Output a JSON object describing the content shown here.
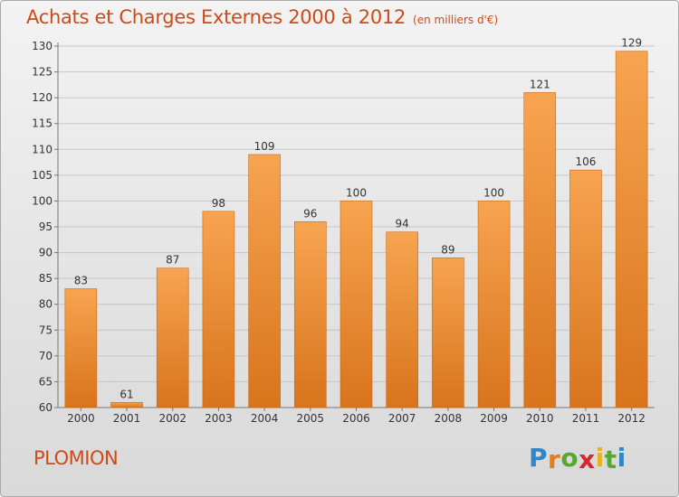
{
  "title": "Achats et Charges Externes 2000 à 2012",
  "subtitle": "(en milliers d'€)",
  "commune": "PLOMION",
  "logo": {
    "letters": [
      "P",
      "r",
      "o",
      "x",
      "i",
      "t",
      "i"
    ],
    "colors": [
      "#2f86c8",
      "#e27c1f",
      "#56a82f",
      "#d9262b",
      "#e8b21e",
      "#56a82f",
      "#2f86c8"
    ]
  },
  "colors": {
    "title": "#cf4a16",
    "bar_light": "#f7a450",
    "bar_dark": "#d8741c"
  },
  "chart_data": {
    "type": "bar",
    "title": "Achats et Charges Externes 2000 à 2012",
    "subtitle": "(en milliers d'€)",
    "xlabel": "",
    "ylabel": "",
    "categories": [
      "2000",
      "2001",
      "2002",
      "2003",
      "2004",
      "2005",
      "2006",
      "2007",
      "2008",
      "2009",
      "2010",
      "2011",
      "2012"
    ],
    "values": [
      83,
      61,
      87,
      98,
      109,
      96,
      100,
      94,
      89,
      100,
      121,
      106,
      129
    ],
    "ylim": [
      60,
      130
    ],
    "yticks": [
      60,
      65,
      70,
      75,
      80,
      85,
      90,
      95,
      100,
      105,
      110,
      115,
      120,
      125,
      130
    ],
    "grid": true,
    "legend": "none"
  }
}
